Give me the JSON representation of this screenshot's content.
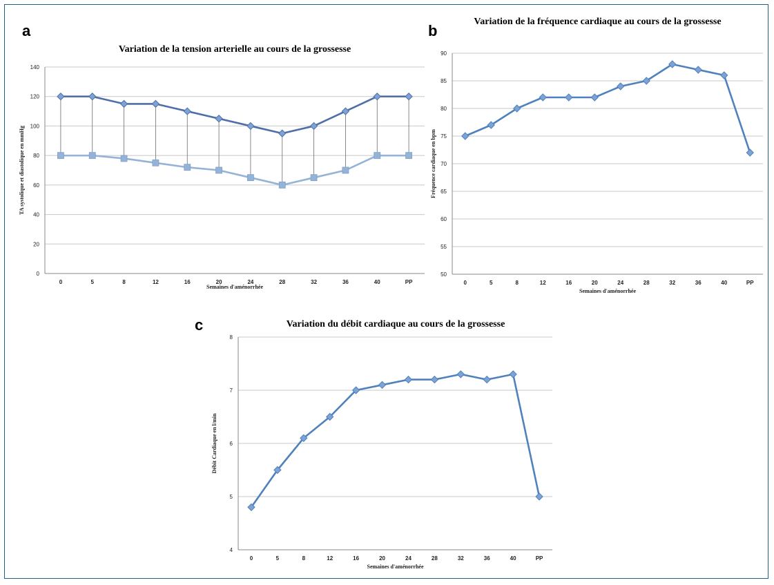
{
  "figure": {
    "panel_labels": [
      "a",
      "b",
      "c"
    ]
  },
  "chart_data": [
    {
      "type": "line",
      "panel": "a",
      "title": "Variation de la tension arterielle au cours de la grossesse",
      "xlabel": "Semaines d'aménorrhée",
      "ylabel": "TA systolique et diastolique en mmHg",
      "categories": [
        "0",
        "5",
        "8",
        "12",
        "16",
        "20",
        "24",
        "28",
        "32",
        "36",
        "40",
        "PP"
      ],
      "series": [
        {
          "values": [
            120,
            120,
            115,
            115,
            110,
            105,
            100,
            95,
            100,
            110,
            120,
            120
          ],
          "color": "#4f6fa8",
          "marker": "diamond"
        },
        {
          "values": [
            80,
            80,
            78,
            75,
            72,
            70,
            65,
            60,
            65,
            70,
            80,
            80
          ],
          "color": "#95b3d7",
          "marker": "square"
        }
      ],
      "drop_lines": true,
      "ylim": [
        0,
        140
      ],
      "yticks": [
        0,
        20,
        40,
        60,
        80,
        100,
        120,
        140
      ],
      "grid": true
    },
    {
      "type": "line",
      "panel": "b",
      "title": "Variation de la fréquence cardiaque au cours de la grossesse",
      "xlabel": "Semaines d'aménorrhée",
      "ylabel": "Fréquence cardiaque en bpm",
      "categories": [
        "0",
        "5",
        "8",
        "12",
        "16",
        "20",
        "24",
        "28",
        "32",
        "36",
        "40",
        "PP"
      ],
      "series": [
        {
          "values": [
            75,
            77,
            80,
            82,
            82,
            82,
            84,
            85,
            88,
            87,
            86,
            72
          ],
          "color": "#4f81bd",
          "marker": "diamond"
        }
      ],
      "ylim": [
        50,
        90
      ],
      "yticks": [
        50,
        55,
        60,
        65,
        70,
        75,
        80,
        85,
        90
      ],
      "grid": true
    },
    {
      "type": "line",
      "panel": "c",
      "title": "Variation du débit cardiaque au cours de la grossesse",
      "xlabel": "Semaines d'aménorrhée",
      "ylabel": "Débit Cardiaque en l/min",
      "categories": [
        "0",
        "5",
        "8",
        "12",
        "16",
        "20",
        "24",
        "28",
        "32",
        "36",
        "40",
        "PP"
      ],
      "series": [
        {
          "values": [
            4.8,
            5.5,
            6.1,
            6.5,
            7.0,
            7.1,
            7.2,
            7.2,
            7.3,
            7.2,
            7.3,
            5.0
          ],
          "color": "#4f81bd",
          "marker": "diamond"
        }
      ],
      "ylim": [
        4,
        8
      ],
      "yticks": [
        4,
        5,
        6,
        7,
        8
      ],
      "grid": true
    }
  ]
}
